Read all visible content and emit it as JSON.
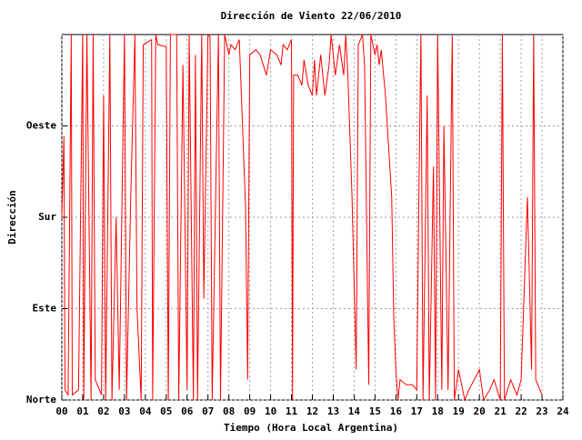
{
  "chart_data": {
    "type": "line",
    "title": "Dirección de Viento 22/06/2010",
    "x_label": "Tiempo (Hora Local Argentina)",
    "y_label": "Dirección",
    "color": "#ff0000",
    "grid": true,
    "xlim": [
      0,
      24
    ],
    "ylim": [
      0,
      360
    ],
    "xticks": [
      {
        "value": 0,
        "label": "00"
      },
      {
        "value": 1,
        "label": "01"
      },
      {
        "value": 2,
        "label": "02"
      },
      {
        "value": 3,
        "label": "03"
      },
      {
        "value": 4,
        "label": "04"
      },
      {
        "value": 5,
        "label": "05"
      },
      {
        "value": 6,
        "label": "06"
      },
      {
        "value": 7,
        "label": "07"
      },
      {
        "value": 8,
        "label": "08"
      },
      {
        "value": 9,
        "label": "09"
      },
      10,
      11,
      12,
      13,
      14,
      15,
      16,
      17,
      18,
      19,
      20,
      21,
      22,
      23,
      24
    ],
    "yticks": [
      {
        "value": 0,
        "label": "Norte"
      },
      {
        "value": 90,
        "label": "Este"
      },
      {
        "value": 180,
        "label": "Sur"
      },
      {
        "value": 270,
        "label": "Oeste"
      }
    ],
    "x": [
      0.0,
      0.1,
      0.15,
      0.3,
      0.45,
      0.5,
      0.8,
      1.0,
      1.05,
      1.2,
      1.4,
      1.5,
      1.6,
      1.9,
      2.0,
      2.1,
      2.3,
      2.4,
      2.6,
      2.75,
      3.0,
      3.1,
      3.3,
      3.5,
      3.6,
      3.8,
      3.9,
      4.3,
      4.35,
      4.5,
      4.6,
      5.0,
      5.1,
      5.2,
      5.5,
      5.6,
      5.8,
      6.0,
      6.1,
      6.3,
      6.4,
      6.5,
      6.7,
      6.8,
      7.0,
      7.1,
      7.2,
      7.5,
      7.6,
      7.8,
      8.0,
      8.1,
      8.3,
      8.5,
      8.6,
      8.8,
      8.9,
      9.0,
      9.3,
      9.5,
      9.8,
      10.0,
      10.3,
      10.5,
      10.6,
      10.8,
      11.0,
      11.05,
      11.1,
      11.3,
      11.5,
      11.6,
      11.8,
      12.0,
      12.1,
      12.2,
      12.4,
      12.6,
      12.8,
      12.9,
      13.1,
      13.3,
      13.5,
      13.6,
      13.7,
      13.9,
      14.1,
      14.2,
      14.4,
      14.5,
      14.7,
      14.8,
      15.0,
      15.1,
      15.2,
      15.3,
      15.5,
      15.8,
      15.9,
      16.0,
      16.1,
      16.2,
      16.5,
      16.8,
      17.0,
      17.1,
      17.2,
      17.3,
      17.5,
      17.6,
      17.8,
      17.9,
      18.0,
      18.2,
      18.3,
      18.5,
      18.7,
      18.8,
      19.0,
      19.3,
      19.5,
      20.0,
      20.2,
      20.5,
      20.7,
      21.0,
      21.1,
      21.2,
      21.5,
      21.8,
      22.0,
      22.3,
      22.5,
      22.6,
      22.7,
      23.0
    ],
    "values": [
      180,
      260,
      10,
      5,
      360,
      5,
      10,
      360,
      0,
      360,
      0,
      360,
      20,
      5,
      300,
      0,
      360,
      0,
      180,
      10,
      360,
      0,
      200,
      360,
      90,
      0,
      350,
      355,
      0,
      360,
      350,
      348,
      0,
      360,
      360,
      0,
      330,
      10,
      360,
      0,
      340,
      0,
      360,
      100,
      360,
      358,
      0,
      360,
      0,
      360,
      340,
      350,
      345,
      355,
      300,
      190,
      20,
      340,
      345,
      340,
      320,
      345,
      340,
      330,
      350,
      345,
      355,
      0,
      320,
      320,
      310,
      335,
      310,
      300,
      335,
      300,
      340,
      300,
      330,
      360,
      320,
      350,
      320,
      360,
      320,
      200,
      30,
      350,
      360,
      330,
      15,
      360,
      340,
      350,
      330,
      345,
      300,
      200,
      80,
      30,
      0,
      20,
      15,
      15,
      10,
      200,
      360,
      0,
      300,
      0,
      230,
      0,
      360,
      10,
      270,
      10,
      360,
      0,
      30,
      0,
      10,
      30,
      0,
      10,
      20,
      0,
      360,
      0,
      20,
      5,
      20,
      200,
      30,
      360,
      20,
      5
    ]
  }
}
